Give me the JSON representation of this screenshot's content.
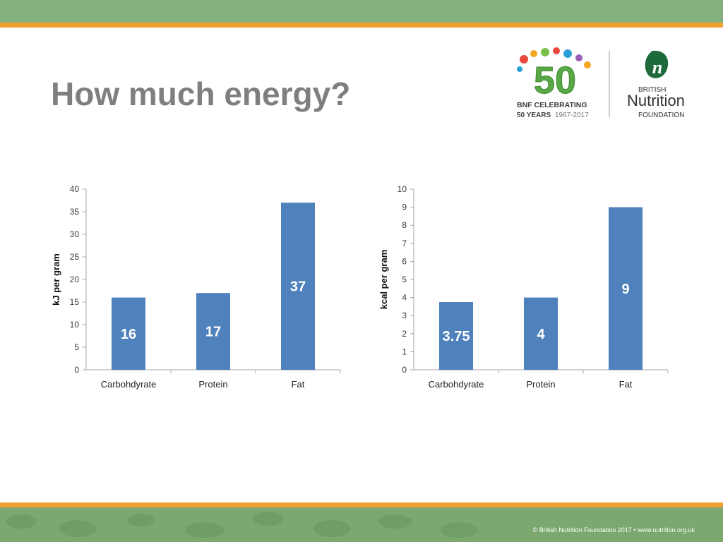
{
  "slide": {
    "title": "How much energy?",
    "footer": "© British Nutrition Foundation 2017  •  www.nutrition.org.uk"
  },
  "logo_bnf50": {
    "number": "50",
    "line1": "BNF CELEBRATING",
    "line2": "50 YEARS",
    "years": "1967-2017"
  },
  "logo_bnf": {
    "mark": "n",
    "line1": "BRITISH",
    "line2": "Nutrition",
    "line3": "FOUNDATION"
  },
  "colors": {
    "bar": "#4f81bd",
    "accent_green": "#84b07e",
    "accent_orange": "#f0a030",
    "title_gray": "#7f7f7f"
  },
  "chart_data": [
    {
      "type": "bar",
      "categories": [
        "Carbohdyrate",
        "Protein",
        "Fat"
      ],
      "values": [
        16,
        17,
        37
      ],
      "data_labels": [
        "16",
        "17",
        "37"
      ],
      "ylabel": "kJ per gram",
      "ylim": [
        0,
        40
      ],
      "yticks": [
        0,
        5,
        10,
        15,
        20,
        25,
        30,
        35,
        40
      ],
      "grid": false
    },
    {
      "type": "bar",
      "categories": [
        "Carbohdyrate",
        "Protein",
        "Fat"
      ],
      "values": [
        3.75,
        4,
        9
      ],
      "data_labels": [
        "3.75",
        "4",
        "9"
      ],
      "ylabel": "kcal per gram",
      "ylim": [
        0,
        10
      ],
      "yticks": [
        0,
        1,
        2,
        3,
        4,
        5,
        6,
        7,
        8,
        9,
        10
      ],
      "grid": false
    }
  ]
}
